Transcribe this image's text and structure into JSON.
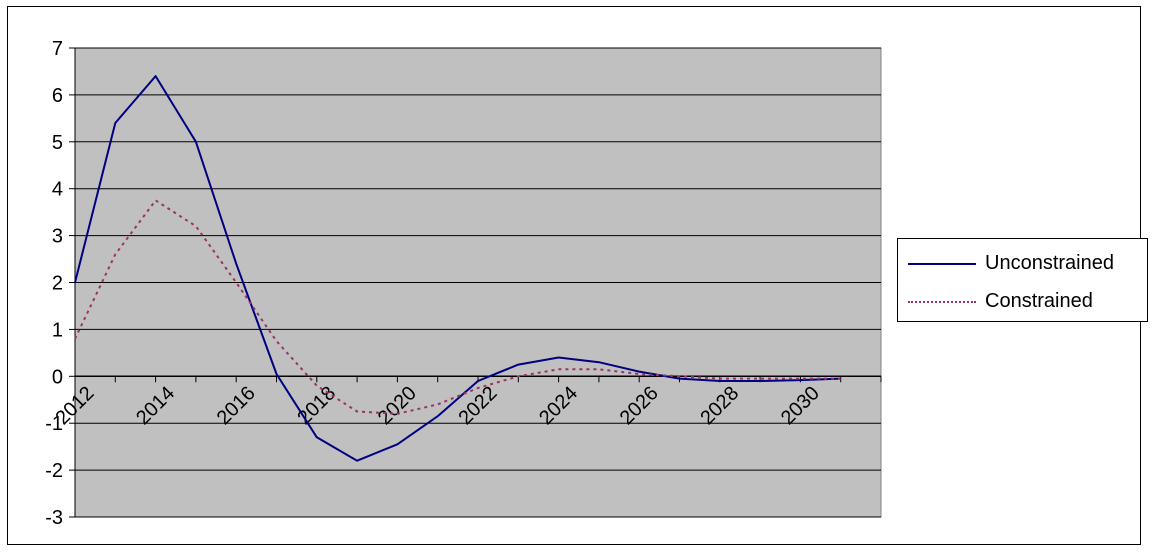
{
  "chart_data": {
    "type": "line",
    "x": [
      2012,
      2013,
      2014,
      2015,
      2016,
      2017,
      2018,
      2019,
      2020,
      2021,
      2022,
      2023,
      2024,
      2025,
      2026,
      2027,
      2028,
      2029,
      2030,
      2031
    ],
    "x_tick_labels": [
      "2012",
      "2014",
      "2016",
      "2018",
      "2020",
      "2022",
      "2024",
      "2026",
      "2028",
      "2030"
    ],
    "xlim": [
      2012,
      2032
    ],
    "ylim": [
      -3,
      7
    ],
    "y_ticks": [
      -3,
      -2,
      -1,
      0,
      1,
      2,
      3,
      4,
      5,
      6,
      7
    ],
    "grid": "horizontal",
    "legend_position": "right",
    "plot_background": "#c0c0c0",
    "series": [
      {
        "name": "Unconstrained",
        "color": "#000080",
        "style": "solid",
        "values": [
          2.0,
          5.4,
          6.4,
          5.0,
          2.4,
          0.05,
          -1.3,
          -1.8,
          -1.45,
          -0.85,
          -0.1,
          0.25,
          0.4,
          0.3,
          0.1,
          -0.05,
          -0.1,
          -0.1,
          -0.08,
          -0.05
        ]
      },
      {
        "name": "Constrained",
        "color": "#993366",
        "style": "dotted",
        "values": [
          0.8,
          2.6,
          3.75,
          3.2,
          2.0,
          0.75,
          -0.2,
          -0.75,
          -0.8,
          -0.6,
          -0.25,
          0.0,
          0.15,
          0.15,
          0.05,
          0.0,
          -0.05,
          -0.05,
          -0.05,
          -0.05
        ]
      }
    ]
  }
}
